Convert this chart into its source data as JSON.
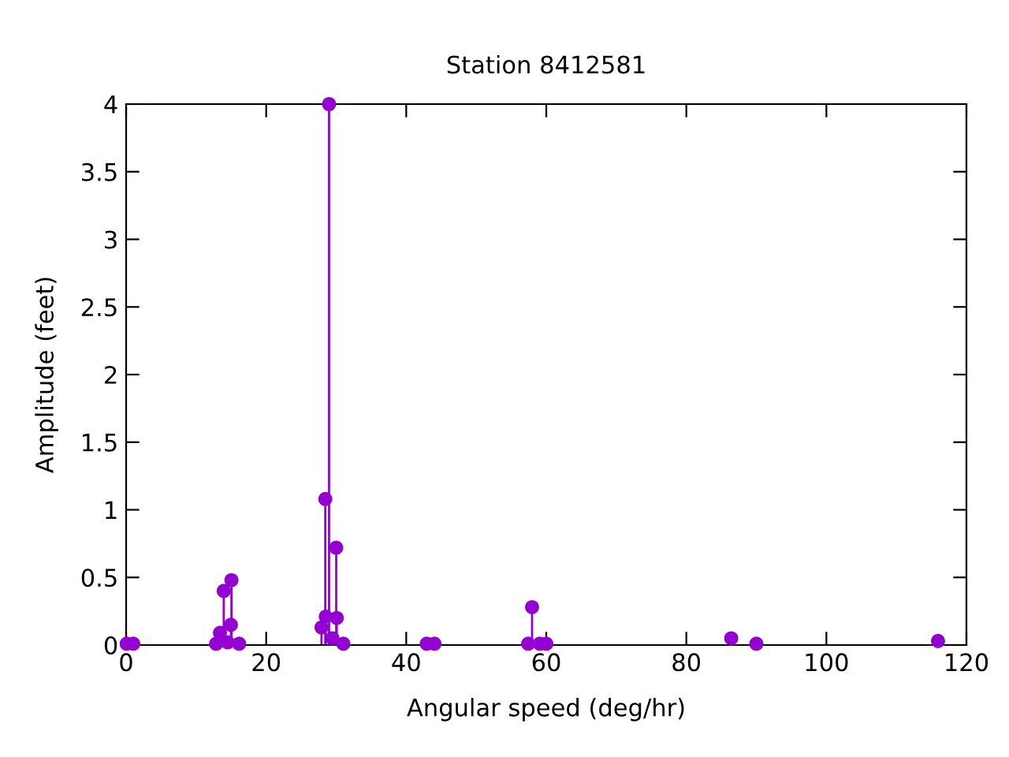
{
  "chart_data": {
    "type": "lollipop",
    "title": "Station 8412581",
    "xlabel": "Angular speed (deg/hr)",
    "ylabel": "Amplitude (feet)",
    "series": [
      {
        "color": "#9400d3",
        "x": [
          0.08,
          1.02,
          12.85,
          13.4,
          13.94,
          14.5,
          14.96,
          15.04,
          16.14,
          27.9,
          28.44,
          28.51,
          28.98,
          29.46,
          30.0,
          30.08,
          31.02,
          42.93,
          44.03,
          57.42,
          57.97,
          59.07,
          60.0,
          86.41,
          90.0,
          115.94
        ],
        "values": [
          0.01,
          0.01,
          0.01,
          0.09,
          0.4,
          0.02,
          0.15,
          0.48,
          0.01,
          0.13,
          1.08,
          0.21,
          4,
          0.05,
          0.72,
          0.2,
          0.01,
          0.01,
          0.01,
          0.01,
          0.28,
          0.01,
          0.01,
          0.05,
          0.01,
          0.03
        ]
      }
    ],
    "marker": "circle",
    "xlim": [
      0,
      120
    ],
    "ylim": [
      0,
      4
    ],
    "xticks": [
      0,
      20,
      40,
      60,
      80,
      100,
      120
    ],
    "yticks": [
      0,
      0.5,
      1,
      1.5,
      2,
      2.5,
      3,
      3.5,
      4
    ],
    "grid": false,
    "legend": false
  }
}
